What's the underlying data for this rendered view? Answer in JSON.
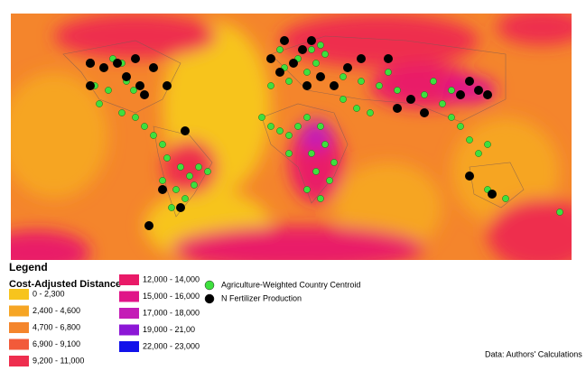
{
  "legend": {
    "title": "Legend",
    "distance_title": "Cost-Adjusted Distance",
    "distance_classes": [
      {
        "label": "0 - 2,300",
        "color": "#f7c41d"
      },
      {
        "label": "2,400 - 4,600",
        "color": "#f6a524"
      },
      {
        "label": "4,700 - 6,800",
        "color": "#f4852c"
      },
      {
        "label": "6,900 - 9,100",
        "color": "#f25a3a"
      },
      {
        "label": "9,200 - 11,000",
        "color": "#ee2e4e"
      },
      {
        "label": "12,000 - 14,000",
        "color": "#e91a68"
      },
      {
        "label": "15,000 - 16,000",
        "color": "#e01488"
      },
      {
        "label": "17,000 - 18,000",
        "color": "#c41cb6"
      },
      {
        "label": "19,000 - 21,00",
        "color": "#8c17d6"
      },
      {
        "label": "22,000 - 23,000",
        "color": "#1212ea"
      }
    ],
    "points": [
      {
        "label": "Agriculture-Weighted Country Centroid",
        "color": "#3ee03e"
      },
      {
        "label": "N Fertilizer Production",
        "color": "#000000"
      }
    ]
  },
  "source": "Data: Authors' Calculations"
}
